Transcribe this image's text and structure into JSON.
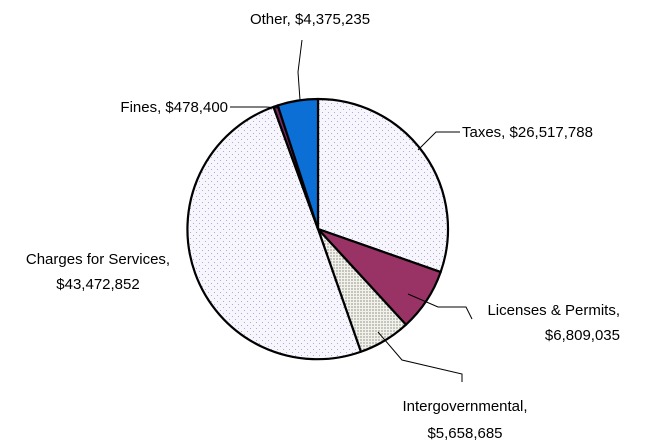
{
  "chart_data": {
    "type": "pie",
    "title": "",
    "slices": [
      {
        "name": "Taxes",
        "value": 26517788,
        "label": [
          "Taxes, $26,517,788"
        ],
        "color": "#f4f4fb",
        "pattern": "dots-light"
      },
      {
        "name": "Licenses & Permits",
        "value": 6809035,
        "label": [
          "Licenses & Permits,",
          "$6,809,035"
        ],
        "color": "#993366",
        "pattern": "solid"
      },
      {
        "name": "Intergovernmental",
        "value": 5658685,
        "label": [
          "Intergovernmental,",
          "$5,658,685"
        ],
        "color": "#f0f0e8",
        "pattern": "dots-dense"
      },
      {
        "name": "Charges for Services",
        "value": 43472852,
        "label": [
          "Charges for Services,",
          "$43,472,852"
        ],
        "color": "#f4f4fb",
        "pattern": "dots-light"
      },
      {
        "name": "Fines",
        "value": 478400,
        "label": [
          "Fines, $478,400"
        ],
        "color": "#7a2a63",
        "pattern": "solid"
      },
      {
        "name": "Other",
        "value": 4375235,
        "label": [
          "Other, $4,375,235"
        ],
        "color": "#0b6fd6",
        "pattern": "solid"
      }
    ],
    "start_angle": "12 o'clock",
    "direction": "clockwise",
    "legend": "none"
  }
}
